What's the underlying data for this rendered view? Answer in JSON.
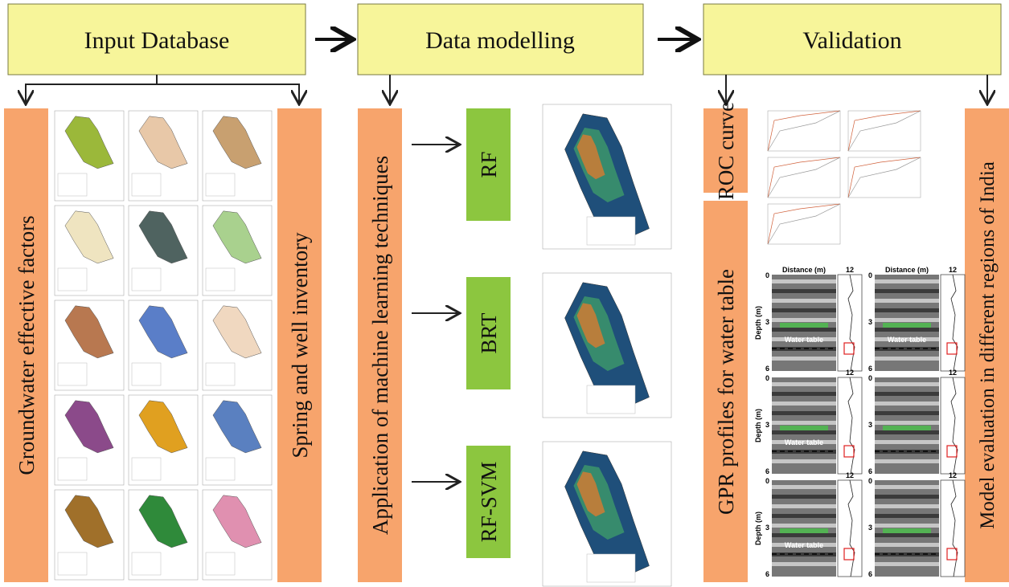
{
  "header": {
    "input": "Input Database",
    "modelling": "Data modelling",
    "validation": "Validation"
  },
  "side_labels": {
    "factors": "Groundwater effective factors",
    "inventory": "Spring and well inventory",
    "ml": "Application of machine learning techniques",
    "roc": "ROC curve",
    "gpr": "GPR profiles for water table",
    "evaluation": "Model evaluation in different regions of India"
  },
  "models": [
    "RF",
    "BRT",
    "RF-SVM"
  ],
  "gpr": {
    "x_label": "Distance (m)",
    "y_label": "Depth (m)",
    "water_table": "Water table",
    "x_ticks": [
      "0",
      "12"
    ],
    "y_ticks": [
      "0",
      "3",
      "6"
    ]
  }
}
